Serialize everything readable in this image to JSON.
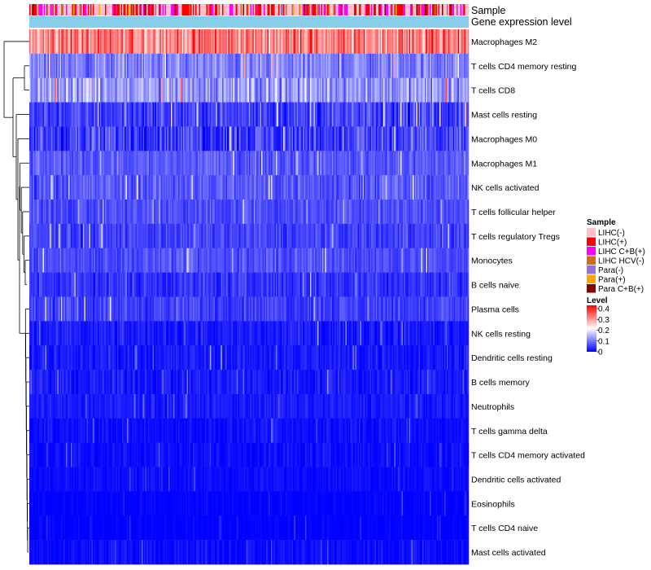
{
  "chart_data": {
    "type": "heatmap",
    "title": "",
    "annotation_tracks": [
      "Sample",
      "Gene expression level"
    ],
    "rows": [
      {
        "label": "Macrophages M2",
        "mean": 0.3,
        "spread": 0.12
      },
      {
        "label": "T cells CD4 memory resting",
        "mean": 0.1,
        "spread": 0.08
      },
      {
        "label": "T cells CD8",
        "mean": 0.12,
        "spread": 0.1
      },
      {
        "label": "Mast cells resting",
        "mean": 0.05,
        "spread": 0.07
      },
      {
        "label": "Macrophages M0",
        "mean": 0.05,
        "spread": 0.09
      },
      {
        "label": "Macrophages M1",
        "mean": 0.07,
        "spread": 0.05
      },
      {
        "label": "NK cells activated",
        "mean": 0.07,
        "spread": 0.06
      },
      {
        "label": "T cells follicular helper",
        "mean": 0.06,
        "spread": 0.05
      },
      {
        "label": "T cells regulatory  Tregs",
        "mean": 0.05,
        "spread": 0.05
      },
      {
        "label": "Monocytes",
        "mean": 0.06,
        "spread": 0.05
      },
      {
        "label": "B cells naive",
        "mean": 0.04,
        "spread": 0.05
      },
      {
        "label": "Plasma cells",
        "mean": 0.05,
        "spread": 0.05
      },
      {
        "label": "NK cells resting",
        "mean": 0.02,
        "spread": 0.04
      },
      {
        "label": "Dendritic cells resting",
        "mean": 0.02,
        "spread": 0.04
      },
      {
        "label": "B cells memory",
        "mean": 0.02,
        "spread": 0.04
      },
      {
        "label": "Neutrophils",
        "mean": 0.02,
        "spread": 0.03
      },
      {
        "label": "T cells gamma delta",
        "mean": 0.01,
        "spread": 0.03
      },
      {
        "label": "T cells CD4 memory activated",
        "mean": 0.01,
        "spread": 0.03
      },
      {
        "label": "Dendritic cells activated",
        "mean": 0.01,
        "spread": 0.02
      },
      {
        "label": "Eosinophils",
        "mean": 0.0,
        "spread": 0.02
      },
      {
        "label": "T cells CD4 naive",
        "mean": 0.0,
        "spread": 0.02
      },
      {
        "label": "Mast cells activated",
        "mean": 0.01,
        "spread": 0.03
      }
    ],
    "sample_count": 360,
    "sample_legend": {
      "title": "Sample",
      "entries": [
        {
          "label": "LIHC(-)",
          "color": "#ffc0cb"
        },
        {
          "label": "LIHC(+)",
          "color": "#ff0000"
        },
        {
          "label": "LIHC C+B(+)",
          "color": "#ff00ff"
        },
        {
          "label": "LIHC HCV(-)",
          "color": "#d2691e"
        },
        {
          "label": "Para(-)",
          "color": "#9370db"
        },
        {
          "label": "Para(+)",
          "color": "#ffa500"
        },
        {
          "label": "Para C+B(+)",
          "color": "#8b0000"
        }
      ]
    },
    "level_legend": {
      "title": "Level",
      "range": [
        0,
        0.4
      ],
      "ticks": [
        "0.4",
        "0.3",
        "0.2",
        "0.1",
        "0"
      ],
      "color_low": "#0000ff",
      "color_mid": "#ffffff",
      "color_high": "#ff0000"
    },
    "gene_expression_color": "#87ceeb"
  }
}
